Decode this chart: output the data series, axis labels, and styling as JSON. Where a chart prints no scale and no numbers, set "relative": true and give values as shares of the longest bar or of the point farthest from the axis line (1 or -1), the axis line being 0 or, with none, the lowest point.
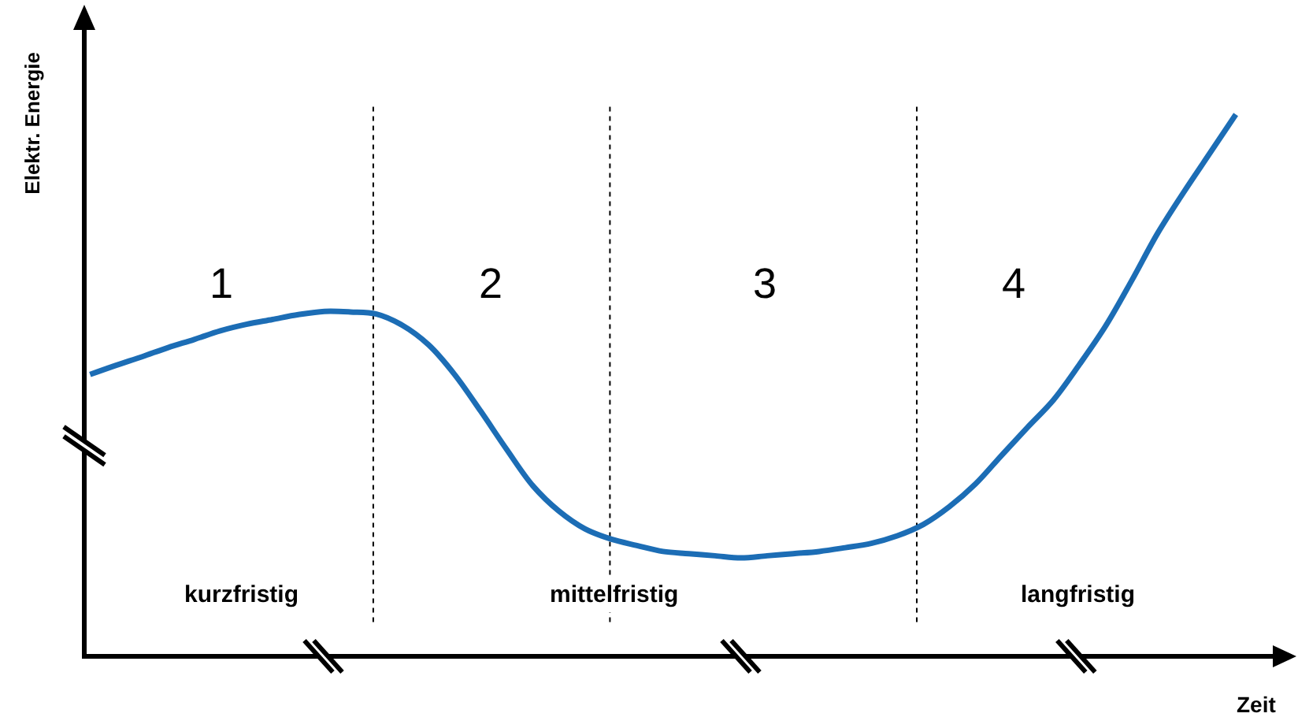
{
  "chart_data": {
    "type": "line",
    "xlabel": "Zeit",
    "ylabel": "Elektr. Energie",
    "relative": true,
    "line_style": "solid",
    "marker": "none",
    "categories": [
      null,
      null,
      null,
      null,
      null,
      null,
      null,
      null,
      null,
      null,
      null,
      null,
      null,
      null,
      null,
      null,
      null,
      null,
      null,
      null,
      null,
      null,
      null,
      null,
      null,
      null,
      null,
      null,
      null,
      null,
      null,
      null,
      null,
      null,
      null,
      null,
      null,
      null,
      null,
      null,
      null,
      null,
      null,
      null,
      null
    ],
    "series": [
      {
        "color": "#1c6db5",
        "values": [
          0.518,
          0.535,
          0.551,
          0.568,
          0.583,
          0.599,
          0.611,
          0.62,
          0.629,
          0.635,
          0.634,
          0.63,
          0.609,
          0.573,
          0.518,
          0.45,
          0.379,
          0.312,
          0.265,
          0.232,
          0.213,
          0.201,
          0.19,
          0.186,
          0.182,
          0.178,
          0.182,
          0.186,
          0.19,
          0.197,
          0.205,
          0.219,
          0.24,
          0.273,
          0.315,
          0.368,
          0.42,
          0.471,
          0.537,
          0.608,
          0.692,
          0.78,
          0.856,
          0.928,
          1.0
        ]
      }
    ],
    "annotations": [
      "1",
      "2",
      "3",
      "4",
      "kurzfristig",
      "mittelfristig",
      "langfristig"
    ]
  }
}
